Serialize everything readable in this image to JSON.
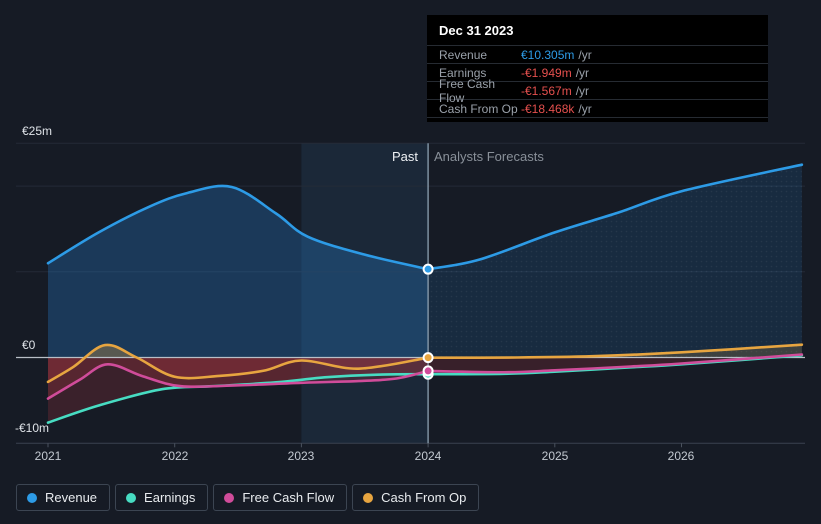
{
  "colors": {
    "background": "#161b25",
    "past_band": "rgba(62,118,178,0.14)",
    "divider": "#8fa3b3",
    "zero_line": "#b9bfc7",
    "gridline": "#242b37",
    "axis": "#3a4250",
    "tick": "#4a525e",
    "revenue_fill": "rgba(36,116,186,0.35)",
    "revenue_fill_forecast": "rgba(36,116,186,0.18)",
    "red_fill": "rgba(205,62,72,0.20)",
    "red_fill_forecast": "rgba(205,62,72,0.10)",
    "positive_fill": "rgba(231,165,64,0.30)",
    "positive_fill_forecast": "rgba(231,165,64,0.18)",
    "marker_ring": "#ffffff"
  },
  "tooltip": {
    "date": "Dec 31 2023",
    "rows": [
      {
        "label": "Revenue",
        "value": "€10.305m",
        "suffix": "/yr",
        "color": "#2d9be6"
      },
      {
        "label": "Earnings",
        "value": "-€1.949m",
        "suffix": "/yr",
        "color": "#e5504e"
      },
      {
        "label": "Free Cash Flow",
        "value": "-€1.567m",
        "suffix": "/yr",
        "color": "#e5504e"
      },
      {
        "label": "Cash From Op",
        "value": "-€18.468k",
        "suffix": "/yr",
        "color": "#e5504e"
      }
    ]
  },
  "legend": {
    "items": [
      {
        "label": "Revenue",
        "color": "#2d9be6"
      },
      {
        "label": "Earnings",
        "color": "#47dcc2"
      },
      {
        "label": "Free Cash Flow",
        "color": "#d04c9a"
      },
      {
        "label": "Cash From Op",
        "color": "#e7a540"
      }
    ]
  },
  "chart_data": {
    "type": "line",
    "x_ticks": [
      "2021",
      "2022",
      "2023",
      "2024",
      "2025",
      "2026"
    ],
    "x_range": [
      2021,
      2026.95
    ],
    "y_axis": {
      "unit": "€m",
      "ylim": [
        -10,
        25
      ],
      "labels": [
        {
          "text": "€25m",
          "value": 25
        },
        {
          "text": "€0",
          "value": 0
        },
        {
          "text": "-€10m",
          "value": -10
        }
      ],
      "gridlines": [
        25,
        20,
        10
      ]
    },
    "annotations": {
      "past_label": "Past",
      "forecast_label": "Analysts Forecasts"
    },
    "divider_x": 2024,
    "past_band": [
      2023,
      2024
    ],
    "marker_date": "Dec 31 2023",
    "series": [
      {
        "name": "Revenue",
        "color": "#2d9be6",
        "fill": "blue",
        "past": [
          [
            2021,
            11.0
          ],
          [
            2021.4,
            14.6
          ],
          [
            2021.8,
            17.6
          ],
          [
            2022.1,
            19.2
          ],
          [
            2022.45,
            19.9
          ],
          [
            2022.8,
            16.8
          ],
          [
            2023.05,
            14.1
          ],
          [
            2023.5,
            12.0
          ],
          [
            2024,
            10.305
          ]
        ],
        "forecast": [
          [
            2024,
            10.305
          ],
          [
            2024.4,
            11.4
          ],
          [
            2025,
            14.6
          ],
          [
            2025.5,
            16.9
          ],
          [
            2026,
            19.4
          ],
          [
            2026.95,
            22.5
          ]
        ]
      },
      {
        "name": "Earnings",
        "color": "#47dcc2",
        "fill": "negative",
        "past": [
          [
            2021,
            -7.6
          ],
          [
            2021.4,
            -5.6
          ],
          [
            2021.9,
            -3.7
          ],
          [
            2022.3,
            -3.35
          ],
          [
            2022.8,
            -2.9
          ],
          [
            2023.2,
            -2.3
          ],
          [
            2023.6,
            -2.0
          ],
          [
            2024,
            -1.949
          ]
        ],
        "forecast": [
          [
            2024,
            -1.949
          ],
          [
            2024.6,
            -1.9
          ],
          [
            2025,
            -1.65
          ],
          [
            2025.6,
            -1.15
          ],
          [
            2026,
            -0.8
          ],
          [
            2026.95,
            0.25
          ]
        ]
      },
      {
        "name": "Free Cash Flow",
        "color": "#d04c9a",
        "fill": "negative",
        "past": [
          [
            2021,
            -4.8
          ],
          [
            2021.25,
            -2.6
          ],
          [
            2021.47,
            -0.8
          ],
          [
            2021.75,
            -2.2
          ],
          [
            2022.05,
            -3.35
          ],
          [
            2022.5,
            -3.25
          ],
          [
            2023,
            -2.95
          ],
          [
            2023.45,
            -2.75
          ],
          [
            2023.75,
            -2.45
          ],
          [
            2024,
            -1.567
          ]
        ],
        "forecast": [
          [
            2024,
            -1.567
          ],
          [
            2024.6,
            -1.72
          ],
          [
            2025,
            -1.5
          ],
          [
            2025.6,
            -1.05
          ],
          [
            2026,
            -0.7
          ],
          [
            2026.95,
            0.35
          ]
        ]
      },
      {
        "name": "Cash From Op",
        "color": "#e7a540",
        "fill": "both",
        "past": [
          [
            2021,
            -2.85
          ],
          [
            2021.2,
            -1.1
          ],
          [
            2021.45,
            1.45
          ],
          [
            2021.7,
            0.0
          ],
          [
            2022.0,
            -2.25
          ],
          [
            2022.35,
            -2.15
          ],
          [
            2022.7,
            -1.55
          ],
          [
            2023.0,
            -0.35
          ],
          [
            2023.45,
            -1.3
          ],
          [
            2024,
            -0.018
          ]
        ],
        "forecast": [
          [
            2024,
            -0.018
          ],
          [
            2024.7,
            0.0
          ],
          [
            2025.3,
            0.15
          ],
          [
            2026,
            0.6
          ],
          [
            2026.95,
            1.5
          ]
        ]
      }
    ]
  }
}
